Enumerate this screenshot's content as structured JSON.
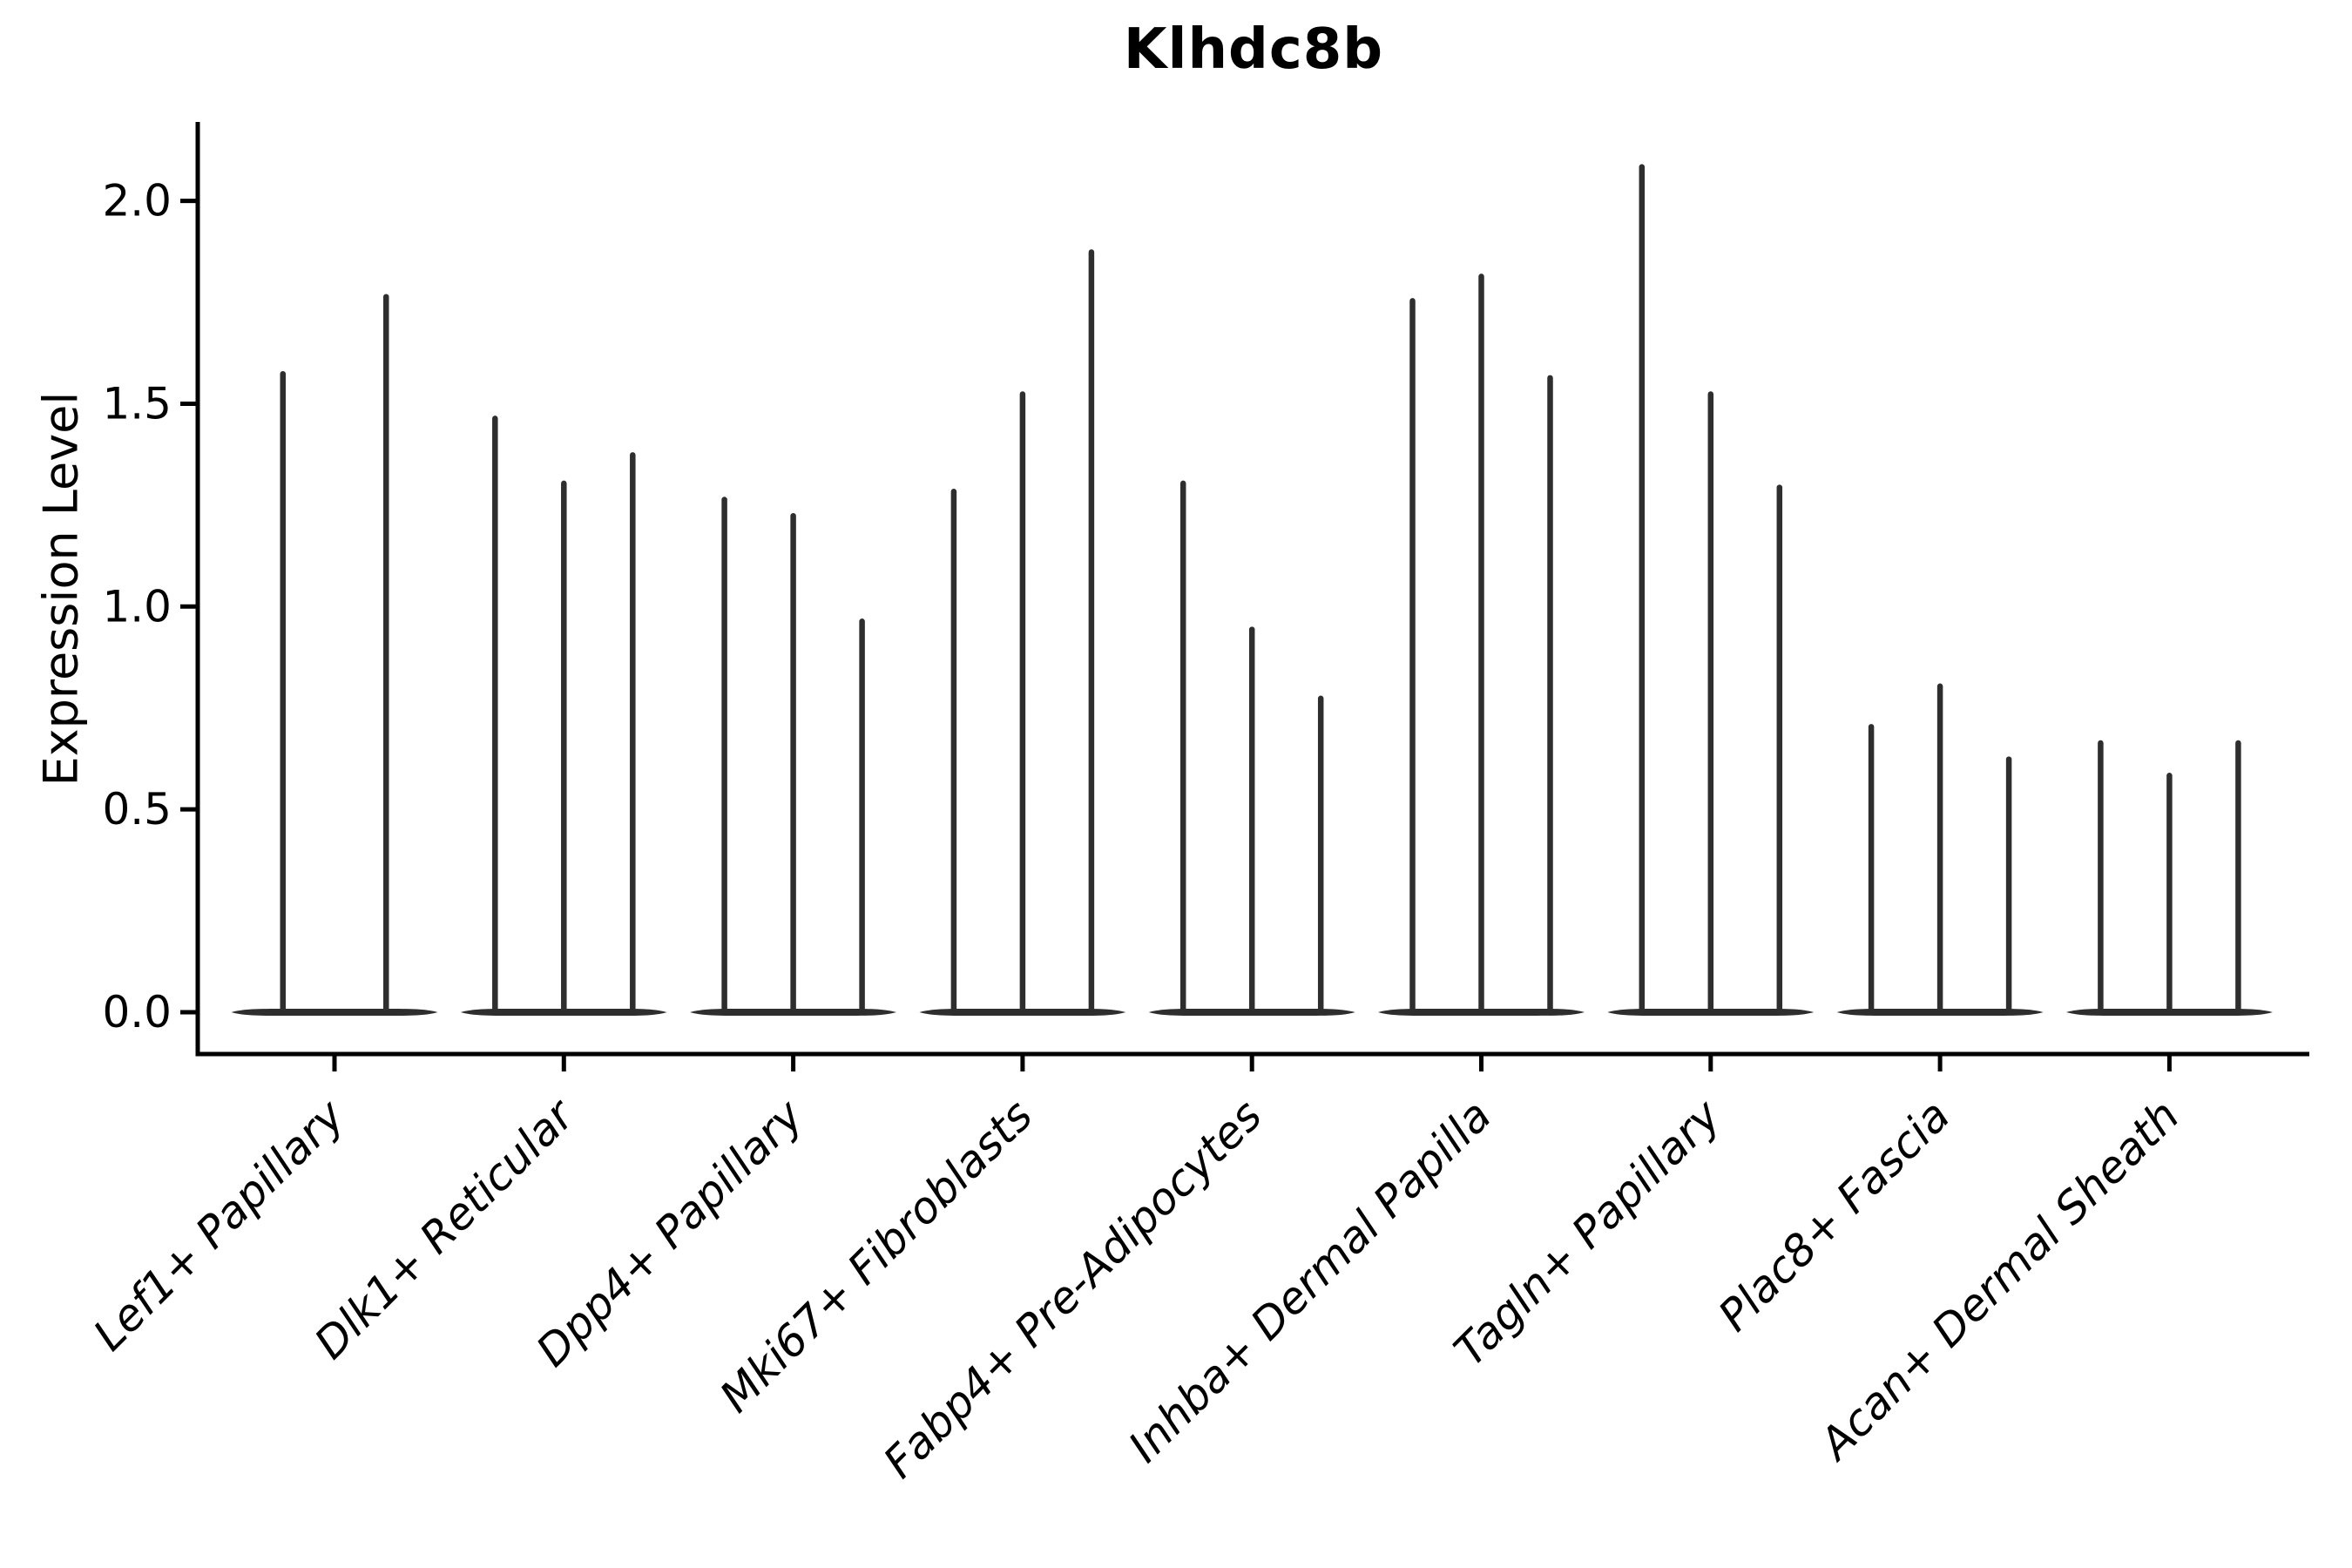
{
  "chart_data": {
    "type": "violin",
    "title": "Klhdc8b",
    "xlabel": "",
    "ylabel": "Expression Level",
    "ylim": [
      -0.1,
      2.19
    ],
    "y_ticks": [
      "0.0",
      "0.5",
      "1.0",
      "1.5",
      "2.0"
    ],
    "y_tick_values": [
      0.0,
      0.5,
      1.0,
      1.5,
      2.0
    ],
    "grid": false,
    "legend": "none",
    "x_tick_rotation_deg": 45,
    "x_tick_font_style": "italic",
    "violin_color": "#2e2e2e",
    "axis_color": "#000000",
    "style_note": "Zero-inflated single-cell expression violins: each violin is a flat base at 0 with a thin vertical spike reaching its maximum expression value",
    "categories": [
      "Lef1+ Papillary",
      "Dlk1+ Reticular",
      "Dpp4+ Papillary",
      "Mki67+ Fibroblasts",
      "Fabp4+ Pre-Adipocytes",
      "Inhba+ Dermal Papilla",
      "Tagln+ Papillary",
      "Plac8+ Fascia",
      "Acan+ Dermal Sheath"
    ],
    "groups": [
      {
        "category": "Lef1+ Papillary",
        "violin_max_expression": [
          1.58,
          1.77
        ]
      },
      {
        "category": "Dlk1+ Reticular",
        "violin_max_expression": [
          1.47,
          1.31,
          1.38
        ]
      },
      {
        "category": "Dpp4+ Papillary",
        "violin_max_expression": [
          1.27,
          1.23,
          0.97
        ]
      },
      {
        "category": "Mki67+ Fibroblasts",
        "violin_max_expression": [
          1.29,
          1.53,
          1.88
        ]
      },
      {
        "category": "Fabp4+ Pre-Adipocytes",
        "violin_max_expression": [
          1.31,
          0.95,
          0.78
        ]
      },
      {
        "category": "Inhba+ Dermal Papilla",
        "violin_max_expression": [
          1.76,
          1.82,
          1.57
        ]
      },
      {
        "category": "Tagln+ Papillary",
        "violin_max_expression": [
          2.09,
          1.53,
          1.3
        ]
      },
      {
        "category": "Plac8+ Fascia",
        "violin_max_expression": [
          0.71,
          0.81,
          0.63
        ]
      },
      {
        "category": "Acan+ Dermal Sheath",
        "violin_max_expression": [
          0.67,
          0.59,
          0.67
        ]
      }
    ]
  }
}
